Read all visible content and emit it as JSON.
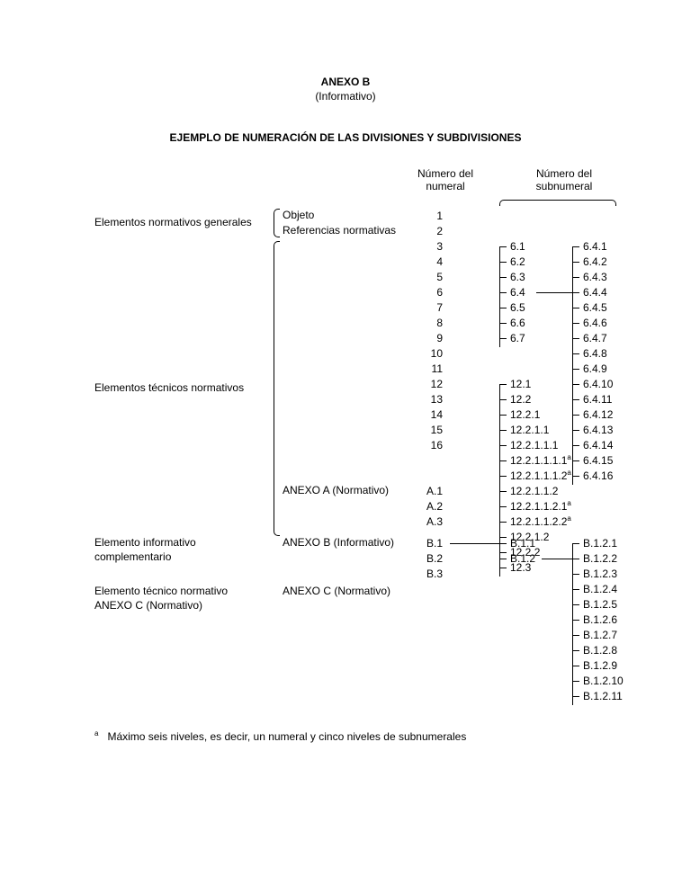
{
  "header": {
    "title": "ANEXO B",
    "subtitle": "(Informativo)",
    "section_title": "EJEMPLO DE NUMERACIÓN DE LAS DIVISIONES Y SUBDIVISIONES"
  },
  "column_headers": {
    "numeral_l1": "Número del",
    "numeral_l2": "numeral",
    "subnumeral_l1": "Número del",
    "subnumeral_l2": "subnumeral"
  },
  "row_labels": {
    "generales": "Elementos normativos generales",
    "objeto": "Objeto",
    "referencias": "Referencias normativas",
    "tecnicos": "Elementos técnicos normativos",
    "anexo_a": "ANEXO A (Normativo)",
    "complementario_l1": "Elemento informativo",
    "complementario_l2": "complementario",
    "anexo_b": "ANEXO B (Informativo)",
    "tecnico_norm_l1": "Elemento técnico normativo",
    "tecnico_norm_l2": "ANEXO C (Normativo)",
    "anexo_c": "ANEXO C (Normativo)"
  },
  "numerals": {
    "main": [
      "1",
      "2",
      "3",
      "4",
      "5",
      "6",
      "7",
      "8",
      "9",
      "10",
      "11",
      "12",
      "13",
      "14",
      "15",
      "16"
    ],
    "anexo_a": [
      "A.1",
      "A.2",
      "A.3"
    ],
    "anexo_b": [
      "B.1",
      "B.2",
      "B.3"
    ]
  },
  "subnumerals": {
    "six": [
      "6.1",
      "6.2",
      "6.3",
      "6.4",
      "6.5",
      "6.6",
      "6.7"
    ],
    "twelve": [
      {
        "t": "12.1",
        "sup": ""
      },
      {
        "t": "12.2",
        "sup": ""
      },
      {
        "t": "12.2.1",
        "sup": ""
      },
      {
        "t": "12.2.1.1",
        "sup": ""
      },
      {
        "t": "12.2.1.1.1",
        "sup": ""
      },
      {
        "t": "12.2.1.1.1.1",
        "sup": "a"
      },
      {
        "t": "12.2.1.1.1.2",
        "sup": "a"
      },
      {
        "t": "12.2.1.1.2",
        "sup": ""
      },
      {
        "t": "12.2.1.1.2.1",
        "sup": "a"
      },
      {
        "t": "12.2.1.1.2.2",
        "sup": "a"
      },
      {
        "t": "12.2.1.2",
        "sup": ""
      },
      {
        "t": "12.2.2",
        "sup": ""
      },
      {
        "t": "12.3",
        "sup": ""
      }
    ],
    "six_four": [
      "6.4.1",
      "6.4.2",
      "6.4.3",
      "6.4.4",
      "6.4.5",
      "6.4.6",
      "6.4.7",
      "6.4.8",
      "6.4.9",
      "6.4.10",
      "6.4.11",
      "6.4.12",
      "6.4.13",
      "6.4.14",
      "6.4.15",
      "6.4.16"
    ],
    "b1": [
      "B.1.1",
      "B.1.2"
    ],
    "b12": [
      "B.1.2.1",
      "B.1.2.2",
      "B.1.2.3",
      "B.1.2.4",
      "B.1.2.5",
      "B.1.2.6",
      "B.1.2.7",
      "B.1.2.8",
      "B.1.2.9",
      "B.1.2.10",
      "B.1.2.11"
    ]
  },
  "footnote": {
    "marker": "a",
    "text": "Máximo seis niveles, es decir, un numeral y cinco niveles de subnumerales"
  }
}
